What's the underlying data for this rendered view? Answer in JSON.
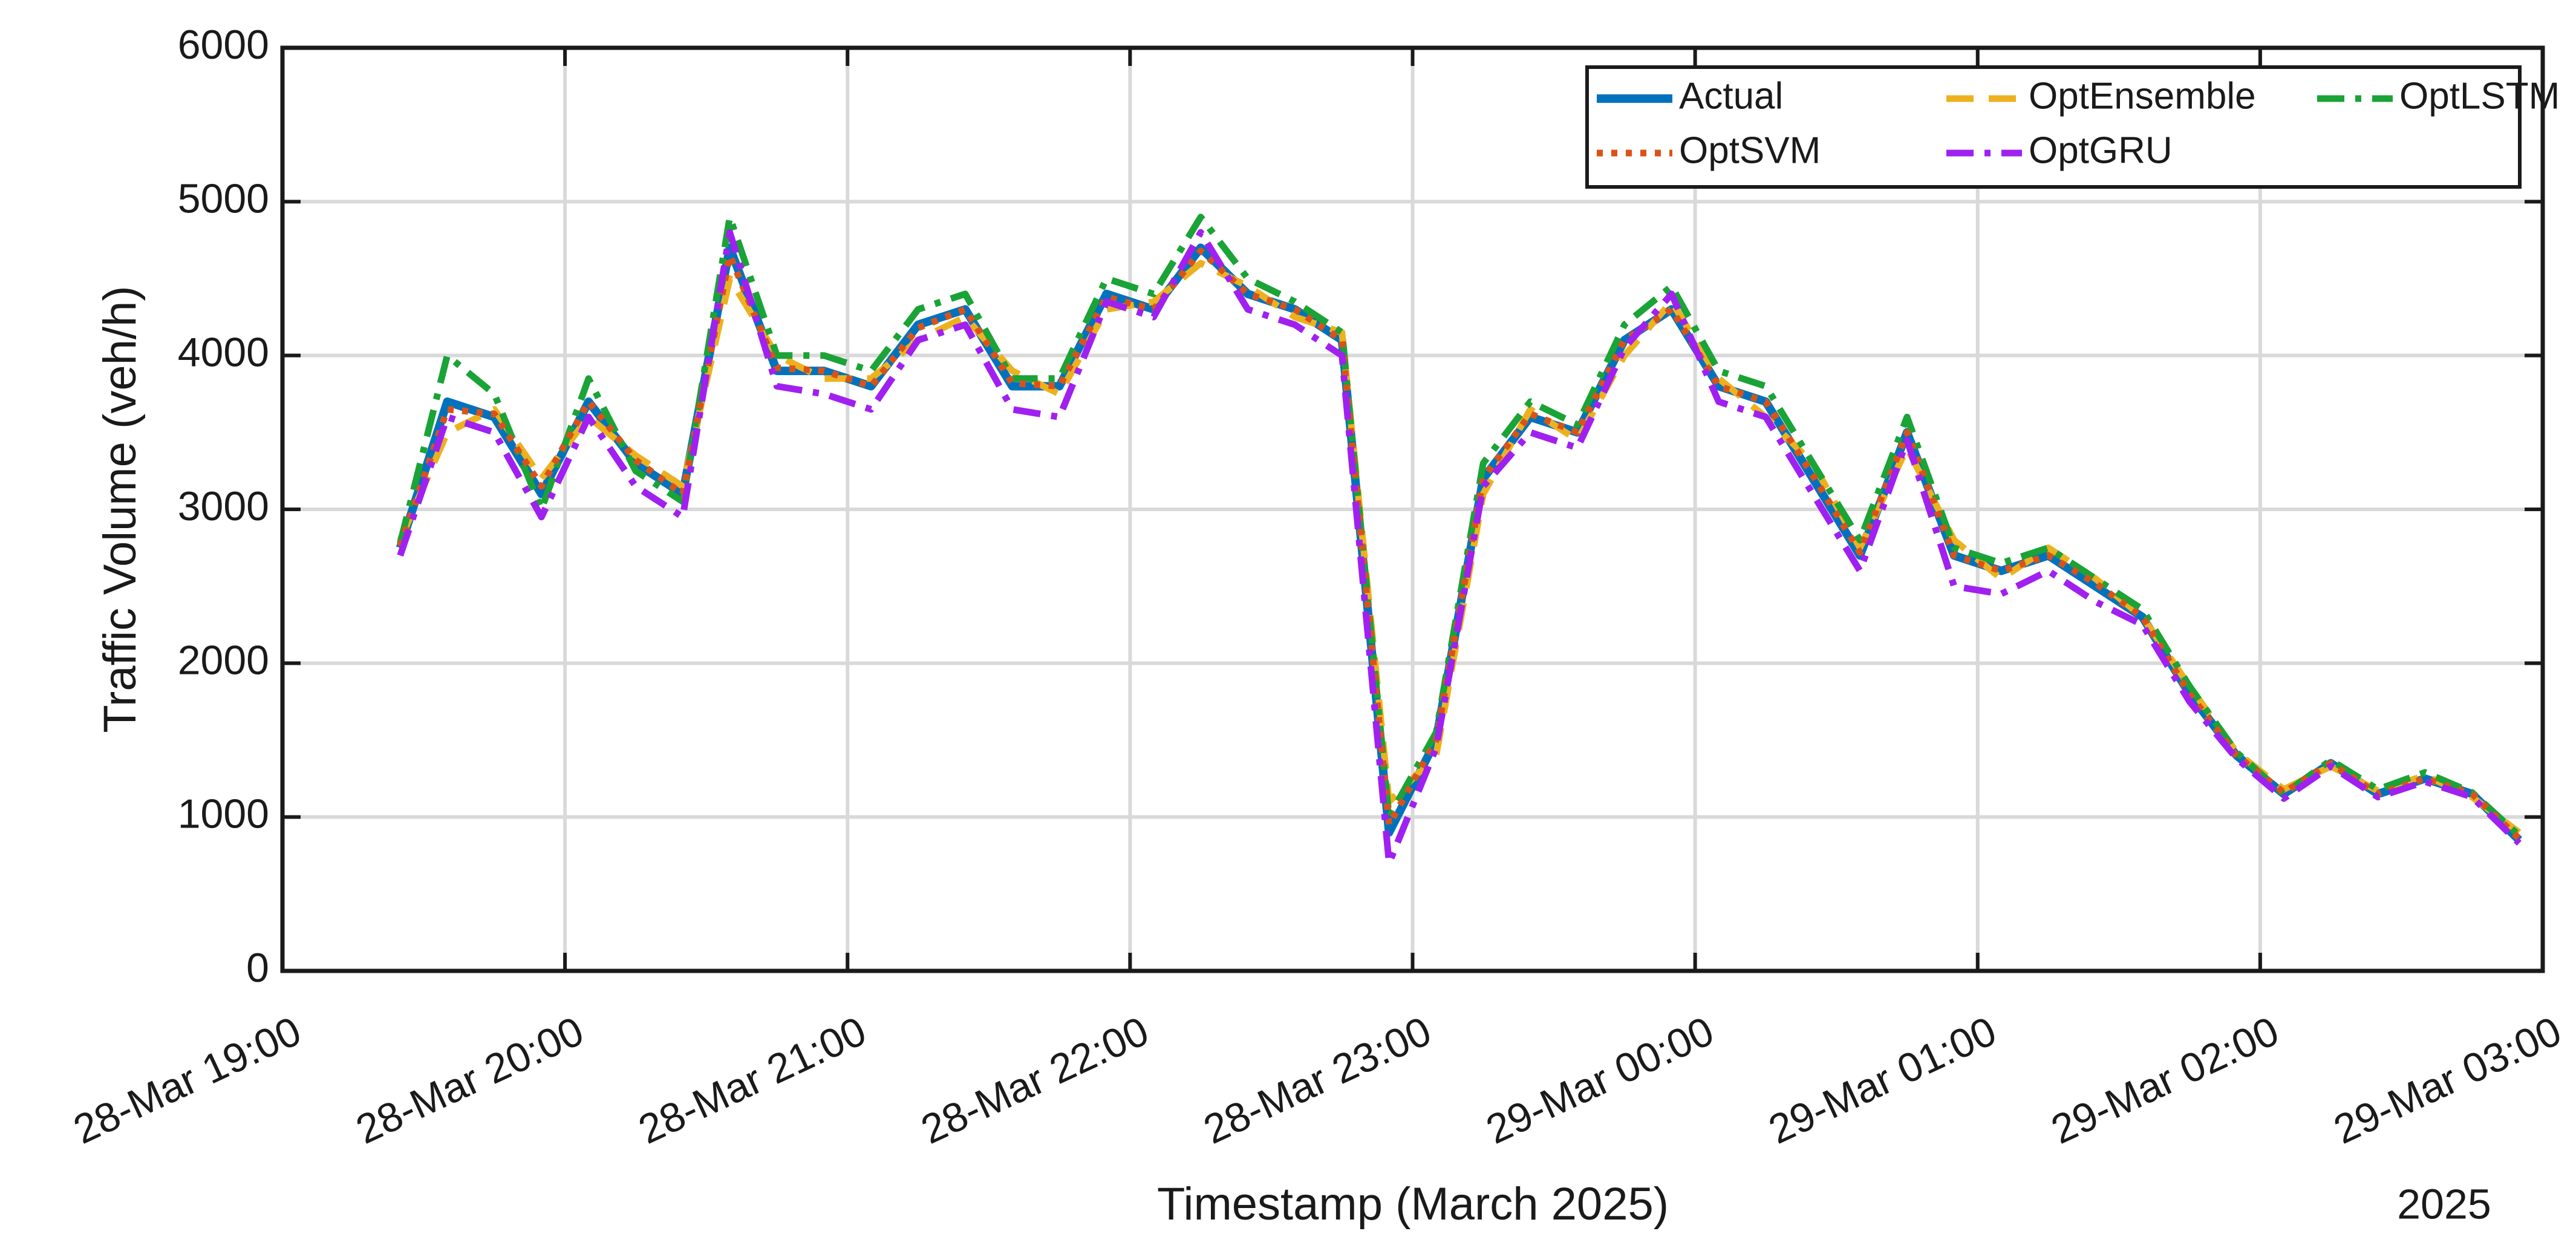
{
  "chart_data": {
    "type": "line",
    "x_label": "Timestamp (March 2025)",
    "x_secondary_label": "2025",
    "y_label": "Traffic Volume (veh/h)",
    "x": [
      "2025-03-28T19:25",
      "2025-03-28T19:35",
      "2025-03-28T19:45",
      "2025-03-28T19:55",
      "2025-03-28T20:05",
      "2025-03-28T20:15",
      "2025-03-28T20:25",
      "2025-03-28T20:35",
      "2025-03-28T20:45",
      "2025-03-28T20:55",
      "2025-03-28T21:05",
      "2025-03-28T21:15",
      "2025-03-28T21:25",
      "2025-03-28T21:35",
      "2025-03-28T21:45",
      "2025-03-28T21:55",
      "2025-03-28T22:05",
      "2025-03-28T22:15",
      "2025-03-28T22:25",
      "2025-03-28T22:35",
      "2025-03-28T22:45",
      "2025-03-28T22:55",
      "2025-03-28T23:05",
      "2025-03-28T23:15",
      "2025-03-28T23:25",
      "2025-03-28T23:35",
      "2025-03-28T23:45",
      "2025-03-28T23:55",
      "2025-03-29T00:05",
      "2025-03-29T00:15",
      "2025-03-29T00:25",
      "2025-03-29T00:35",
      "2025-03-29T00:45",
      "2025-03-29T00:55",
      "2025-03-29T01:05",
      "2025-03-29T01:15",
      "2025-03-29T01:25",
      "2025-03-29T01:35",
      "2025-03-29T01:45",
      "2025-03-29T01:55",
      "2025-03-29T02:05",
      "2025-03-29T02:15",
      "2025-03-29T02:25",
      "2025-03-29T02:35",
      "2025-03-29T02:45",
      "2025-03-29T02:55"
    ],
    "series": [
      {
        "name": "Actual",
        "color": "#0072BD",
        "style": "solid",
        "values": [
          2750,
          3700,
          3600,
          3100,
          3700,
          3300,
          3100,
          4700,
          3900,
          3900,
          3800,
          4200,
          4300,
          3800,
          3800,
          4400,
          4300,
          4700,
          4400,
          4300,
          4100,
          900,
          1500,
          3200,
          3600,
          3500,
          4100,
          4300,
          3800,
          3700,
          3200,
          2700,
          3500,
          2700,
          2600,
          2700,
          2500,
          2300,
          1800,
          1400,
          1150,
          1350,
          1150,
          1250,
          1150,
          850
        ]
      },
      {
        "name": "OptEnsemble",
        "color": "#EDB120",
        "style": "dashed",
        "values": [
          2800,
          3500,
          3650,
          3200,
          3600,
          3350,
          3150,
          4500,
          4000,
          3850,
          3850,
          4100,
          4250,
          3900,
          3750,
          4300,
          4350,
          4600,
          4450,
          4250,
          4150,
          1100,
          1400,
          3100,
          3650,
          3450,
          4000,
          4350,
          3850,
          3600,
          3300,
          2750,
          3400,
          2800,
          2550,
          2750,
          2550,
          2300,
          1850,
          1420,
          1180,
          1330,
          1170,
          1270,
          1130,
          900
        ]
      },
      {
        "name": "OptLSTM",
        "color": "#1AA336",
        "style": "dashdot",
        "values": [
          2780,
          4000,
          3750,
          3000,
          3850,
          3250,
          3050,
          4900,
          4000,
          4000,
          3900,
          4300,
          4400,
          3850,
          3850,
          4500,
          4400,
          4900,
          4500,
          4350,
          4150,
          1000,
          1550,
          3300,
          3700,
          3550,
          4200,
          4450,
          3900,
          3800,
          3300,
          2800,
          3600,
          2750,
          2650,
          2750,
          2550,
          2350,
          1850,
          1420,
          1150,
          1370,
          1180,
          1290,
          1160,
          880
        ]
      },
      {
        "name": "OptSVM",
        "color": "#D95319",
        "style": "dotted",
        "values": [
          2760,
          3650,
          3620,
          3150,
          3700,
          3320,
          3100,
          4650,
          3920,
          3900,
          3800,
          4180,
          4300,
          3820,
          3800,
          4380,
          4300,
          4680,
          4400,
          4300,
          4100,
          950,
          1500,
          3200,
          3620,
          3500,
          4100,
          4300,
          3800,
          3700,
          3220,
          2720,
          3500,
          2700,
          2600,
          2700,
          2520,
          2300,
          1800,
          1400,
          1160,
          1350,
          1150,
          1250,
          1150,
          860
        ]
      },
      {
        "name": "OptGRU",
        "color": "#A020F0",
        "style": "dashdot",
        "values": [
          2700,
          3600,
          3500,
          2950,
          3600,
          3150,
          2950,
          4800,
          3800,
          3750,
          3650,
          4100,
          4200,
          3650,
          3600,
          4350,
          4250,
          4800,
          4300,
          4200,
          4000,
          700,
          1450,
          3150,
          3500,
          3400,
          4050,
          4400,
          3700,
          3600,
          3100,
          2600,
          3450,
          2500,
          2450,
          2600,
          2400,
          2250,
          1750,
          1380,
          1120,
          1330,
          1130,
          1230,
          1130,
          830
        ]
      }
    ],
    "xlim": [
      "2025-03-28T19:00",
      "2025-03-29T03:00"
    ],
    "xticks": [
      {
        "value": "2025-03-28T19:00",
        "label": "28-Mar 19:00"
      },
      {
        "value": "2025-03-28T20:00",
        "label": "28-Mar 20:00"
      },
      {
        "value": "2025-03-28T21:00",
        "label": "28-Mar 21:00"
      },
      {
        "value": "2025-03-28T22:00",
        "label": "28-Mar 22:00"
      },
      {
        "value": "2025-03-28T23:00",
        "label": "28-Mar 23:00"
      },
      {
        "value": "2025-03-29T00:00",
        "label": "29-Mar 00:00"
      },
      {
        "value": "2025-03-29T01:00",
        "label": "29-Mar 01:00"
      },
      {
        "value": "2025-03-29T02:00",
        "label": "29-Mar 02:00"
      },
      {
        "value": "2025-03-29T03:00",
        "label": "29-Mar 03:00"
      }
    ],
    "ylim": [
      0,
      6000
    ],
    "yticks": [
      0,
      1000,
      2000,
      3000,
      4000,
      5000,
      6000
    ],
    "grid": true,
    "legend_position": "upper right"
  }
}
